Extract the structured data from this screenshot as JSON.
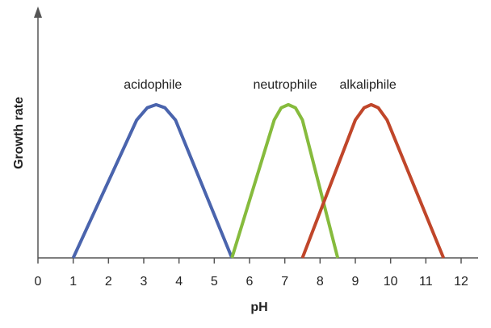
{
  "chart_data": {
    "type": "line",
    "xlabel": "pH",
    "ylabel": "Growth rate",
    "xlim": [
      0,
      12
    ],
    "xticks": [
      0,
      1,
      2,
      3,
      4,
      5,
      6,
      7,
      8,
      9,
      10,
      11,
      12
    ],
    "ylim": [
      0,
      1.62
    ],
    "series": [
      {
        "name": "acidophile",
        "color": "#4a64ad",
        "x": [
          1,
          2.8,
          3.1,
          3.35,
          3.6,
          3.9,
          5.5
        ],
        "values": [
          0,
          0.9,
          0.98,
          1,
          0.98,
          0.9,
          0
        ]
      },
      {
        "name": "neutrophile",
        "color": "#86bb3d",
        "x": [
          5.5,
          6.7,
          6.9,
          7.1,
          7.3,
          7.5,
          8.5
        ],
        "values": [
          0,
          0.9,
          0.98,
          1,
          0.98,
          0.9,
          0
        ]
      },
      {
        "name": "alkaliphile",
        "color": "#c0462a",
        "x": [
          7.5,
          9.0,
          9.25,
          9.45,
          9.65,
          9.9,
          11.5
        ],
        "values": [
          0,
          0.9,
          0.98,
          1,
          0.98,
          0.9,
          0
        ]
      }
    ]
  }
}
